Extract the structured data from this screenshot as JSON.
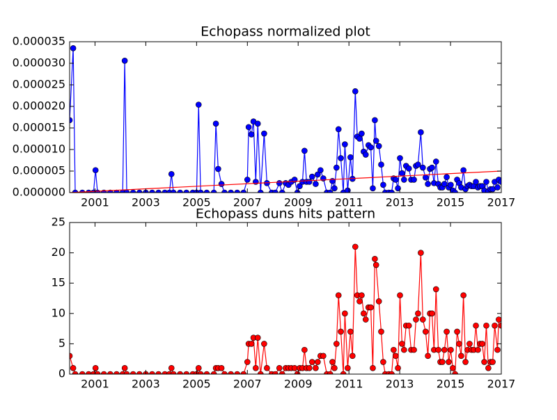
{
  "chart_data": [
    {
      "type": "line",
      "title": "Echopass normalized plot",
      "x": [
        2000,
        2000.14,
        2000.22,
        2000.5,
        2000.75,
        2000.94,
        2001.02,
        2001.1,
        2001.35,
        2001.6,
        2001.85,
        2002.09,
        2002.17,
        2002.25,
        2002.5,
        2002.75,
        2003,
        2003.25,
        2003.5,
        2003.75,
        2003.93,
        2004.01,
        2004.09,
        2004.35,
        2004.6,
        2004.85,
        2005,
        2005.08,
        2005.16,
        2005.4,
        2005.68,
        2005.76,
        2005.85,
        2005.98,
        2006.1,
        2006.35,
        2006.6,
        2006.85,
        2007,
        2007.05,
        2007.16,
        2007.24,
        2007.33,
        2007.41,
        2007.52,
        2007.66,
        2007.77,
        2007.96,
        2008.1,
        2008.26,
        2008.37,
        2008.51,
        2008.62,
        2008.73,
        2008.86,
        2008.97,
        2009.06,
        2009.17,
        2009.25,
        2009.33,
        2009.44,
        2009.55,
        2009.69,
        2009.77,
        2009.88,
        2009.99,
        2010.13,
        2010.26,
        2010.35,
        2010.43,
        2010.51,
        2010.59,
        2010.68,
        2010.78,
        2010.84,
        2010.95,
        2011.06,
        2011.14,
        2011.25,
        2011.33,
        2011.42,
        2011.5,
        2011.58,
        2011.66,
        2011.77,
        2011.86,
        2011.94,
        2012.02,
        2012.07,
        2012.18,
        2012.27,
        2012.35,
        2012.43,
        2012.57,
        2012.68,
        2012.76,
        2012.84,
        2012.93,
        2013.01,
        2013.09,
        2013.17,
        2013.25,
        2013.36,
        2013.45,
        2013.56,
        2013.64,
        2013.72,
        2013.83,
        2013.91,
        2014.02,
        2014.11,
        2014.19,
        2014.27,
        2014.35,
        2014.43,
        2014.52,
        2014.6,
        2014.68,
        2014.76,
        2014.85,
        2014.93,
        2015.01,
        2015.09,
        2015.18,
        2015.26,
        2015.34,
        2015.42,
        2015.51,
        2015.59,
        2015.67,
        2015.75,
        2015.83,
        2015.92,
        2016,
        2016.08,
        2016.16,
        2016.25,
        2016.33,
        2016.41,
        2016.49,
        2016.58,
        2016.66,
        2016.74,
        2016.85,
        2016.9,
        2017
      ],
      "series": [
        {
          "color": "#0000ff",
          "values": [
            1.68e-05,
            3.35e-05,
            0,
            0,
            0,
            0,
            5.2e-06,
            0,
            0,
            0,
            0,
            0,
            3.06e-05,
            0,
            0,
            0,
            0,
            0,
            0,
            0,
            0,
            4.3e-06,
            0,
            0,
            0,
            0,
            0,
            2.04e-05,
            0,
            0,
            0,
            1.6e-05,
            5.5e-06,
            2e-06,
            0,
            0,
            0,
            0,
            3e-06,
            1.52e-05,
            1.35e-05,
            1.65e-05,
            2.5e-06,
            1.6e-05,
            0,
            1.37e-05,
            2.2e-06,
            0,
            0,
            2.2e-06,
            0,
            2.2e-06,
            1.8e-06,
            2.5e-06,
            3e-06,
            0,
            1.5e-06,
            2.5e-06,
            9.7e-06,
            2.5e-06,
            2.5e-06,
            3.7e-06,
            2e-06,
            4.2e-06,
            5.2e-06,
            3.3e-06,
            0,
            0,
            2.7e-06,
            1e-06,
            5.8e-06,
            1.47e-05,
            8e-06,
            0,
            1.12e-05,
            5e-07,
            8.2e-06,
            3.2e-06,
            2.35e-05,
            1.3e-05,
            1.25e-05,
            1.37e-05,
            9.5e-06,
            8.8e-06,
            1.1e-05,
            1.05e-05,
            1e-06,
            1.68e-05,
            1.2e-05,
            1.08e-05,
            6.5e-06,
            1.8e-06,
            0,
            0,
            0,
            3.3e-06,
            3e-06,
            1e-06,
            8e-06,
            4.5e-06,
            3e-06,
            6.2e-06,
            5.6e-06,
            3e-06,
            3e-06,
            6.2e-06,
            6.5e-06,
            1.4e-05,
            5.8e-06,
            3.5e-06,
            2e-06,
            5.5e-06,
            5.8e-06,
            2.2e-06,
            7.2e-06,
            2e-06,
            1.2e-06,
            1.2e-06,
            2e-06,
            3.6e-06,
            1.2e-06,
            1.8e-06,
            5e-07,
            0,
            3e-06,
            2.2e-06,
            1.2e-06,
            5.2e-06,
            8e-07,
            1.5e-06,
            1.8e-06,
            1.5e-06,
            1.5e-06,
            2.5e-06,
            1.2e-06,
            1.5e-06,
            1.5e-06,
            5e-07,
            2.5e-06,
            3e-07,
            8e-07,
            8e-07,
            2.5e-06,
            1.2e-06,
            3e-06,
            2.5e-06
          ]
        }
      ],
      "trend_line": {
        "x": [
          2000,
          2017
        ],
        "values": [
          0,
          5e-06
        ],
        "color": "#ff0000"
      },
      "xlim": [
        2000,
        2017
      ],
      "xticks": [
        2001,
        2003,
        2005,
        2007,
        2009,
        2011,
        2013,
        2015,
        2017
      ],
      "ylim": [
        0,
        3.5e-05
      ],
      "yticks": [
        {
          "value": 0,
          "label": "0.000000"
        },
        {
          "value": 5e-06,
          "label": "0.000005"
        },
        {
          "value": 1e-05,
          "label": "0.000010"
        },
        {
          "value": 1.5e-05,
          "label": "0.000015"
        },
        {
          "value": 2e-05,
          "label": "0.000020"
        },
        {
          "value": 2.5e-05,
          "label": "0.000025"
        },
        {
          "value": 3e-05,
          "label": "0.000030"
        },
        {
          "value": 3.5e-05,
          "label": "0.000035"
        }
      ],
      "grid": false
    },
    {
      "type": "line",
      "title": "Echopass duns hits pattern",
      "x": [
        2000,
        2000.14,
        2000.22,
        2000.5,
        2000.75,
        2000.94,
        2001.02,
        2001.1,
        2001.35,
        2001.6,
        2001.85,
        2002.09,
        2002.17,
        2002.25,
        2002.5,
        2002.75,
        2003,
        2003.25,
        2003.5,
        2003.75,
        2003.93,
        2004.01,
        2004.09,
        2004.35,
        2004.6,
        2004.85,
        2005,
        2005.08,
        2005.16,
        2005.4,
        2005.68,
        2005.76,
        2005.85,
        2005.98,
        2006.1,
        2006.35,
        2006.6,
        2006.85,
        2007,
        2007.05,
        2007.16,
        2007.24,
        2007.33,
        2007.41,
        2007.52,
        2007.66,
        2007.77,
        2007.96,
        2008.1,
        2008.26,
        2008.37,
        2008.51,
        2008.62,
        2008.73,
        2008.86,
        2008.97,
        2009.06,
        2009.17,
        2009.25,
        2009.33,
        2009.44,
        2009.55,
        2009.69,
        2009.77,
        2009.88,
        2009.99,
        2010.13,
        2010.26,
        2010.35,
        2010.43,
        2010.51,
        2010.59,
        2010.68,
        2010.78,
        2010.84,
        2010.95,
        2011.06,
        2011.14,
        2011.25,
        2011.33,
        2011.42,
        2011.5,
        2011.58,
        2011.66,
        2011.77,
        2011.86,
        2011.94,
        2012.02,
        2012.07,
        2012.18,
        2012.27,
        2012.35,
        2012.43,
        2012.57,
        2012.68,
        2012.76,
        2012.84,
        2012.93,
        2013.01,
        2013.09,
        2013.17,
        2013.25,
        2013.36,
        2013.45,
        2013.56,
        2013.64,
        2013.72,
        2013.83,
        2013.91,
        2014.02,
        2014.11,
        2014.19,
        2014.27,
        2014.35,
        2014.43,
        2014.52,
        2014.6,
        2014.68,
        2014.76,
        2014.85,
        2014.93,
        2015.01,
        2015.09,
        2015.18,
        2015.26,
        2015.34,
        2015.42,
        2015.51,
        2015.59,
        2015.67,
        2015.75,
        2015.83,
        2015.92,
        2016,
        2016.08,
        2016.16,
        2016.25,
        2016.33,
        2016.41,
        2016.49,
        2016.58,
        2016.66,
        2016.74,
        2016.85,
        2016.9,
        2017
      ],
      "series": [
        {
          "color": "#ff0000",
          "values": [
            3,
            1,
            0,
            0,
            0,
            0,
            1,
            0,
            0,
            0,
            0,
            0,
            1,
            0,
            0,
            0,
            0,
            0,
            0,
            0,
            0,
            1,
            0,
            0,
            0,
            0,
            0,
            1,
            0,
            0,
            0,
            1,
            1,
            1,
            0,
            0,
            0,
            0,
            2,
            5,
            5,
            6,
            1,
            6,
            0,
            5,
            1,
            0,
            0,
            1,
            0,
            1,
            1,
            1,
            1,
            0,
            1,
            1,
            4,
            1,
            1,
            2,
            1,
            2,
            3,
            3,
            0,
            0,
            2,
            1,
            5,
            13,
            7,
            0,
            10,
            1,
            7,
            3,
            21,
            13,
            12,
            13,
            10,
            9,
            11,
            11,
            1,
            19,
            18,
            12,
            7,
            2,
            0,
            0,
            0,
            4,
            3,
            1,
            13,
            5,
            4,
            8,
            8,
            4,
            4,
            9,
            10,
            20,
            9,
            7,
            3,
            10,
            10,
            4,
            14,
            4,
            2,
            2,
            4,
            7,
            2,
            4,
            1,
            0,
            7,
            5,
            3,
            13,
            2,
            4,
            5,
            4,
            4,
            8,
            4,
            5,
            5,
            2,
            8,
            1,
            2,
            2,
            8,
            4,
            9,
            8
          ]
        }
      ],
      "xlim": [
        2000,
        2017
      ],
      "xticks": [
        2001,
        2003,
        2005,
        2007,
        2009,
        2011,
        2013,
        2015,
        2017
      ],
      "ylim": [
        0,
        25
      ],
      "yticks": [
        0,
        5,
        10,
        15,
        20,
        25
      ],
      "grid": false
    }
  ]
}
